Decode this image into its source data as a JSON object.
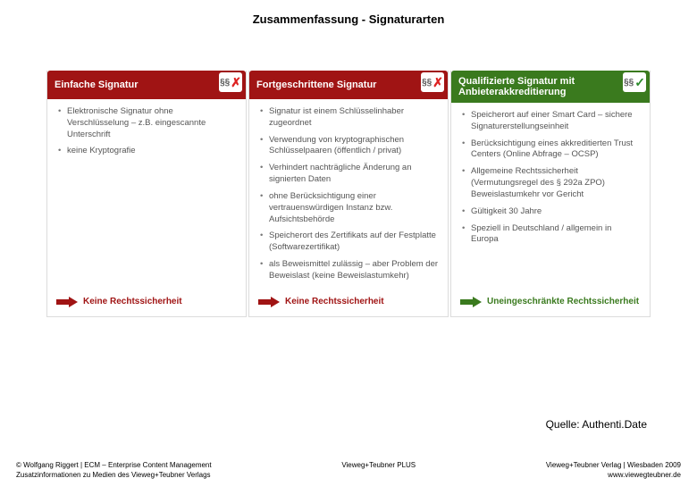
{
  "title": "Zusammenfassung - Signaturarten",
  "columns": [
    {
      "header": "Einfache Signatur",
      "header_bg": "#a01414",
      "badge_symbol": "cross",
      "bullets": [
        "Elektronische Signatur ohne Verschlüsselung – z.B. eingescannte Unterschrift",
        "keine Kryptografie"
      ],
      "footer_text": "Keine Rechtssicherheit",
      "footer_color": "#a01414",
      "arrow_color": "#a01414"
    },
    {
      "header": "Fortgeschrittene Signatur",
      "header_bg": "#a01414",
      "badge_symbol": "cross",
      "bullets": [
        "Signatur ist einem Schlüsselinhaber zugeordnet",
        "Verwendung von kryptographischen Schlüsselpaaren (öffentlich / privat)",
        "Verhindert nachträgliche Änderung an signierten Daten",
        "ohne Berücksichtigung einer vertrauenswürdigen Instanz bzw. Aufsichtsbehörde",
        "Speicherort des Zertifikats auf der Festplatte (Softwarezertifikat)",
        "als Beweismittel zulässig – aber Problem der Beweislast (keine Beweislastumkehr)"
      ],
      "footer_text": "Keine Rechtssicherheit",
      "footer_color": "#a01414",
      "arrow_color": "#a01414"
    },
    {
      "header": "Qualifizierte Signatur mit Anbieterakkreditierung",
      "header_bg": "#3a7a1e",
      "badge_symbol": "check",
      "bullets": [
        "Speicherort auf einer Smart Card – sichere Signaturerstellungseinheit",
        "Berücksichtigung eines akkreditierten Trust Centers (Online Abfrage – OCSP)",
        "Allgemeine Rechtssicherheit (Vermutungsregel des § 292a ZPO) Beweislastumkehr vor Gericht",
        "Gültigkeit 30 Jahre",
        "Speziell in Deutschland / allgemein in Europa"
      ],
      "footer_text": "Uneingeschränkte Rechtssicherheit",
      "footer_color": "#3a7a1e",
      "arrow_color": "#3a7a1e"
    }
  ],
  "source_label": "Quelle: Authenti.Date",
  "footer": {
    "left_line1": "© Wolfgang Riggert | ECM – Enterprise Content Management",
    "left_line2": "Zusatzinformationen zu Medien des Vieweg+Teubner Verlags",
    "center": "Vieweg+Teubner PLUS",
    "right_line1": "Vieweg+Teubner Verlag | Wiesbaden 2009",
    "right_line2": "www.viewegteubner.de"
  }
}
